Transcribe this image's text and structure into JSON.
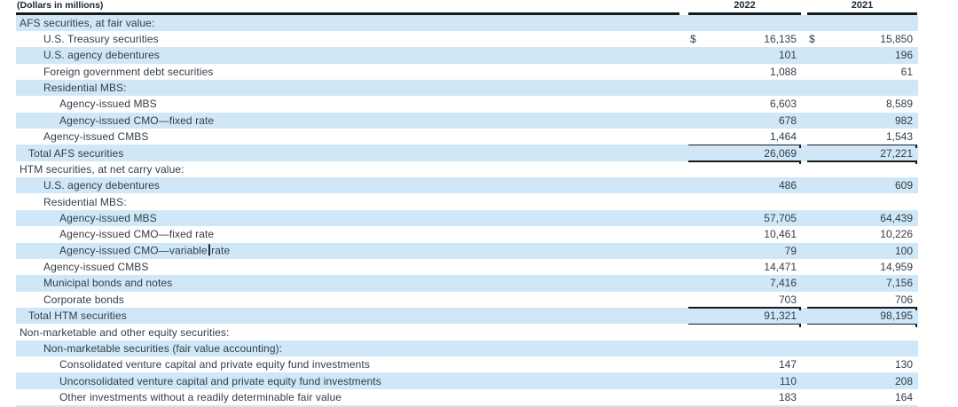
{
  "colors": {
    "stripe": "#cfe7f6",
    "text": "#333e49",
    "rule": "#15191c"
  },
  "table": {
    "unit_note": "(Dollars in millions)",
    "columns": [
      "2022",
      "2021"
    ],
    "rows": [
      {
        "label": "AFS securities, at fair value:",
        "indent": "0",
        "v2022": "",
        "v2021": ""
      },
      {
        "label": "U.S. Treasury securities",
        "indent": "1",
        "v2022": "16,135",
        "v2021": "15,850",
        "dollar": true
      },
      {
        "label": "U.S. agency debentures",
        "indent": "1",
        "v2022": "101",
        "v2021": "196"
      },
      {
        "label": "Foreign government debt securities",
        "indent": "1",
        "v2022": "1,088",
        "v2021": "61"
      },
      {
        "label": "Residential MBS:",
        "indent": "1",
        "v2022": "",
        "v2021": ""
      },
      {
        "label": "Agency-issued MBS",
        "indent": "2",
        "v2022": "6,603",
        "v2021": "8,589"
      },
      {
        "label": "Agency-issued CMO—fixed rate",
        "indent": "2",
        "v2022": "678",
        "v2021": "982"
      },
      {
        "label": "Agency-issued CMBS",
        "indent": "1",
        "v2022": "1,464",
        "v2021": "1,543",
        "rule_below": true
      },
      {
        "label": "Total AFS securities",
        "indent": "total",
        "v2022": "26,069",
        "v2021": "27,221",
        "rule_below": true
      },
      {
        "label": "HTM securities, at net carry value:",
        "indent": "0",
        "v2022": "",
        "v2021": ""
      },
      {
        "label": "U.S. agency debentures",
        "indent": "1",
        "v2022": "486",
        "v2021": "609"
      },
      {
        "label": "Residential MBS:",
        "indent": "1",
        "v2022": "",
        "v2021": ""
      },
      {
        "label": "Agency-issued MBS",
        "indent": "2",
        "v2022": "57,705",
        "v2021": "64,439"
      },
      {
        "label": "Agency-issued CMO—fixed rate",
        "indent": "2",
        "v2022": "10,461",
        "v2021": "10,226"
      },
      {
        "label": "Agency-issued CMO—variable rate",
        "indent": "2",
        "v2022": "79",
        "v2021": "100",
        "cursor_at": 26
      },
      {
        "label": "Agency-issued CMBS",
        "indent": "1",
        "v2022": "14,471",
        "v2021": "14,959"
      },
      {
        "label": "Municipal bonds and notes",
        "indent": "1",
        "v2022": "7,416",
        "v2021": "7,156"
      },
      {
        "label": "Corporate bonds",
        "indent": "1",
        "v2022": "703",
        "v2021": "706",
        "rule_below": true
      },
      {
        "label": "Total HTM securities",
        "indent": "total",
        "v2022": "91,321",
        "v2021": "98,195",
        "rule_below": true
      },
      {
        "label": "Non-marketable and other equity securities:",
        "indent": "0",
        "v2022": "",
        "v2021": ""
      },
      {
        "label": "Non-marketable securities (fair value accounting):",
        "indent": "1",
        "v2022": "",
        "v2021": ""
      },
      {
        "label": "Consolidated venture capital and private equity fund investments",
        "indent": "2",
        "v2022": "147",
        "v2021": "130"
      },
      {
        "label": "Unconsolidated venture capital and private equity fund investments",
        "indent": "2",
        "v2022": "110",
        "v2021": "208"
      },
      {
        "label": "Other investments without a readily determinable fair value",
        "indent": "2",
        "v2022": "183",
        "v2021": "164"
      }
    ]
  }
}
